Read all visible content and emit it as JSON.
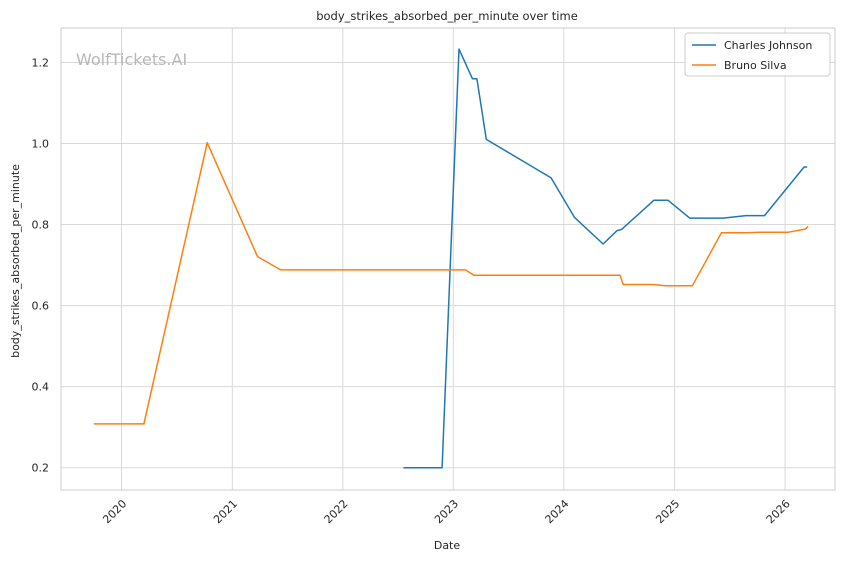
{
  "chart_data": {
    "type": "line",
    "title": "body_strikes_absorbed_per_minute over time",
    "xlabel": "Date",
    "ylabel": "body_strikes_absorbed_per_minute",
    "watermark": "WolfTickets.AI",
    "grid": true,
    "legend_position": "top-right",
    "xlim": [
      "2019-06-15",
      "2026-06-15"
    ],
    "ylim": [
      0.145,
      1.285
    ],
    "x_ticks": [
      "2020-01-01",
      "2021-01-01",
      "2022-01-01",
      "2023-01-01",
      "2024-01-01",
      "2025-01-01",
      "2026-01-01"
    ],
    "x_tick_labels": [
      "2020",
      "2021",
      "2022",
      "2023",
      "2024",
      "2025",
      "2026"
    ],
    "y_ticks": [
      0.2,
      0.4,
      0.6,
      0.8,
      1.0,
      1.2
    ],
    "y_tick_labels": [
      "0.2",
      "0.4",
      "0.6",
      "0.8",
      "1.0",
      "1.2"
    ],
    "series": [
      {
        "name": "Charles Johnson",
        "color": "#1f77b4",
        "points": [
          [
            "2022-07-20",
            0.2
          ],
          [
            "2022-11-25",
            0.2
          ],
          [
            "2023-01-20",
            1.233
          ],
          [
            "2023-03-05",
            1.16
          ],
          [
            "2023-03-20",
            1.16
          ],
          [
            "2023-04-20",
            1.01
          ],
          [
            "2023-11-20",
            0.915
          ],
          [
            "2024-02-05",
            0.818
          ],
          [
            "2024-05-10",
            0.752
          ],
          [
            "2024-06-25",
            0.785
          ],
          [
            "2024-07-10",
            0.788
          ],
          [
            "2024-10-25",
            0.86
          ],
          [
            "2024-12-10",
            0.86
          ],
          [
            "2025-02-20",
            0.816
          ],
          [
            "2025-06-10",
            0.816
          ],
          [
            "2025-08-25",
            0.822
          ],
          [
            "2025-10-25",
            0.822
          ],
          [
            "2026-03-05",
            0.942
          ],
          [
            "2026-03-15",
            0.942
          ]
        ]
      },
      {
        "name": "Bruno Silva",
        "color": "#ff7f0e",
        "points": [
          [
            "2019-10-01",
            0.308
          ],
          [
            "2020-03-15",
            0.308
          ],
          [
            "2020-10-10",
            1.002
          ],
          [
            "2021-03-25",
            0.721
          ],
          [
            "2021-06-10",
            0.688
          ],
          [
            "2023-02-10",
            0.688
          ],
          [
            "2023-03-10",
            0.675
          ],
          [
            "2024-07-05",
            0.675
          ],
          [
            "2024-07-15",
            0.652
          ],
          [
            "2024-10-25",
            0.652
          ],
          [
            "2024-12-01",
            0.649
          ],
          [
            "2025-03-01",
            0.649
          ],
          [
            "2025-06-05",
            0.78
          ],
          [
            "2025-08-25",
            0.78
          ],
          [
            "2025-10-10",
            0.781
          ],
          [
            "2026-01-10",
            0.781
          ],
          [
            "2026-03-10",
            0.789
          ],
          [
            "2026-03-18",
            0.796
          ]
        ]
      }
    ]
  }
}
